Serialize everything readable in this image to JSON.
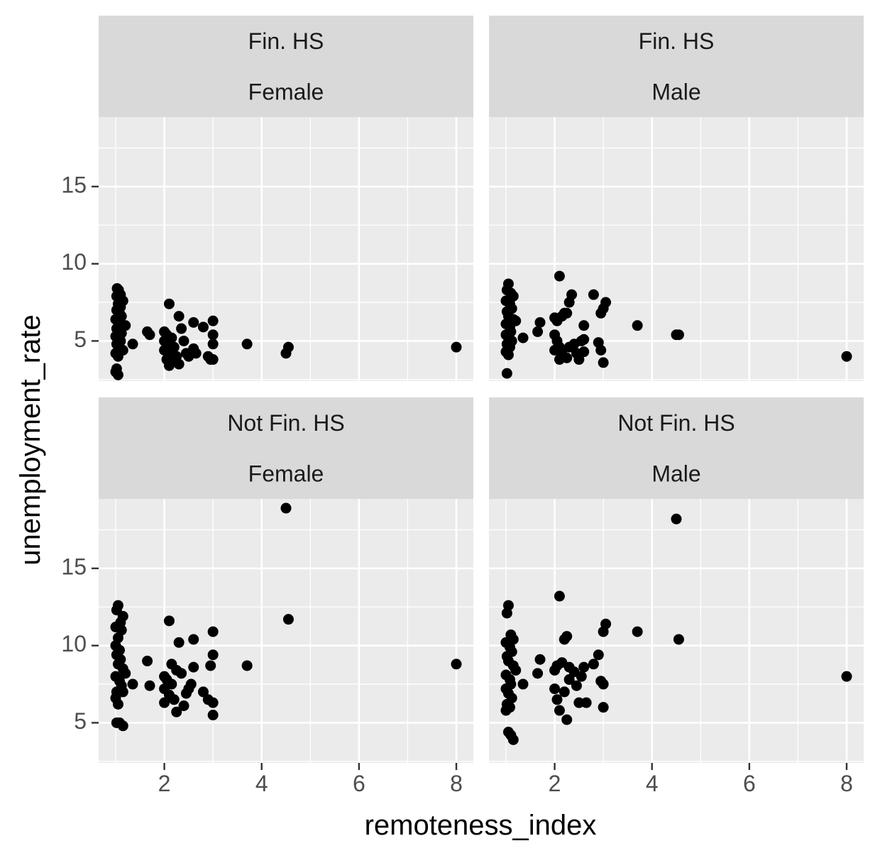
{
  "chart_data": {
    "type": "scatter",
    "facet_layout": "2x2 grid, rows = education, columns = sex",
    "xlabel": "remoteness_index",
    "ylabel": "unemployment_rate",
    "xlim": [
      0.65,
      8.35
    ],
    "x_ticks": [
      2,
      4,
      6,
      8
    ],
    "y_ticks": [
      5,
      10,
      15
    ],
    "grid": true,
    "legend": "none",
    "colors": {
      "panel_bg": "#ebebeb",
      "strip_bg": "#d9d9d9",
      "grid": "#ffffff",
      "point": "#000000"
    },
    "panels": [
      {
        "strip": [
          "Fin. HS",
          "Female"
        ],
        "ylim": [
          2.4,
          19.5
        ],
        "points": [
          [
            1.03,
            8.4
          ],
          [
            1.06,
            8.3
          ],
          [
            1.1,
            8.0
          ],
          [
            1.02,
            7.9
          ],
          [
            1.15,
            7.6
          ],
          [
            1.05,
            7.4
          ],
          [
            1.1,
            7.2
          ],
          [
            1.02,
            7.0
          ],
          [
            1.08,
            6.8
          ],
          [
            1.12,
            6.6
          ],
          [
            1.0,
            6.4
          ],
          [
            1.06,
            6.2
          ],
          [
            1.15,
            6.0
          ],
          [
            1.2,
            6.0
          ],
          [
            1.02,
            5.8
          ],
          [
            1.08,
            5.6
          ],
          [
            1.12,
            5.5
          ],
          [
            1.0,
            5.3
          ],
          [
            1.05,
            5.1
          ],
          [
            1.1,
            5.0
          ],
          [
            1.02,
            4.8
          ],
          [
            1.08,
            4.6
          ],
          [
            1.15,
            4.4
          ],
          [
            1.0,
            4.2
          ],
          [
            1.05,
            4.0
          ],
          [
            1.02,
            3.2
          ],
          [
            1.0,
            3.0
          ],
          [
            1.05,
            2.8
          ],
          [
            1.35,
            4.8
          ],
          [
            1.65,
            5.6
          ],
          [
            1.7,
            5.4
          ],
          [
            2.1,
            7.4
          ],
          [
            2.0,
            5.6
          ],
          [
            2.05,
            5.4
          ],
          [
            2.15,
            5.2
          ],
          [
            2.0,
            5.0
          ],
          [
            2.1,
            4.8
          ],
          [
            2.2,
            4.6
          ],
          [
            2.0,
            4.4
          ],
          [
            2.1,
            4.2
          ],
          [
            2.25,
            4.0
          ],
          [
            2.05,
            3.8
          ],
          [
            2.15,
            3.7
          ],
          [
            2.1,
            3.4
          ],
          [
            2.3,
            3.5
          ],
          [
            2.3,
            6.6
          ],
          [
            2.35,
            5.8
          ],
          [
            2.4,
            5.0
          ],
          [
            2.45,
            4.2
          ],
          [
            2.5,
            4.0
          ],
          [
            2.6,
            6.2
          ],
          [
            2.6,
            4.5
          ],
          [
            2.65,
            4.2
          ],
          [
            2.8,
            5.9
          ],
          [
            2.9,
            4.0
          ],
          [
            2.95,
            3.8
          ],
          [
            3.0,
            3.8
          ],
          [
            3.0,
            6.3
          ],
          [
            3.0,
            5.4
          ],
          [
            3.0,
            4.8
          ],
          [
            3.7,
            4.8
          ],
          [
            4.5,
            4.2
          ],
          [
            4.55,
            4.6
          ],
          [
            8.0,
            4.6
          ]
        ]
      },
      {
        "strip": [
          "Fin. HS",
          "Male"
        ],
        "ylim": [
          2.4,
          19.5
        ],
        "points": [
          [
            1.05,
            8.7
          ],
          [
            1.02,
            8.3
          ],
          [
            1.1,
            8.1
          ],
          [
            1.15,
            7.9
          ],
          [
            1.0,
            7.6
          ],
          [
            1.08,
            7.4
          ],
          [
            1.12,
            7.1
          ],
          [
            1.02,
            6.9
          ],
          [
            1.05,
            6.6
          ],
          [
            1.15,
            6.4
          ],
          [
            1.2,
            6.3
          ],
          [
            1.0,
            6.1
          ],
          [
            1.08,
            5.9
          ],
          [
            1.1,
            5.6
          ],
          [
            1.0,
            5.4
          ],
          [
            1.05,
            5.2
          ],
          [
            1.12,
            5.0
          ],
          [
            1.02,
            4.8
          ],
          [
            1.08,
            4.6
          ],
          [
            1.0,
            4.3
          ],
          [
            1.05,
            4.1
          ],
          [
            1.02,
            2.9
          ],
          [
            1.35,
            5.2
          ],
          [
            1.65,
            5.6
          ],
          [
            1.7,
            6.2
          ],
          [
            2.0,
            6.5
          ],
          [
            2.05,
            6.3
          ],
          [
            2.1,
            9.2
          ],
          [
            2.15,
            6.6
          ],
          [
            2.2,
            6.8
          ],
          [
            2.25,
            6.8
          ],
          [
            2.3,
            7.5
          ],
          [
            2.35,
            8.0
          ],
          [
            2.0,
            5.4
          ],
          [
            2.05,
            5.0
          ],
          [
            2.1,
            4.6
          ],
          [
            2.0,
            4.4
          ],
          [
            2.15,
            4.2
          ],
          [
            2.1,
            3.8
          ],
          [
            2.25,
            3.9
          ],
          [
            2.3,
            4.6
          ],
          [
            2.4,
            4.8
          ],
          [
            2.45,
            4.2
          ],
          [
            2.5,
            3.8
          ],
          [
            2.55,
            5.0
          ],
          [
            2.6,
            4.3
          ],
          [
            2.6,
            5.1
          ],
          [
            2.6,
            6.0
          ],
          [
            2.8,
            8.0
          ],
          [
            2.9,
            4.9
          ],
          [
            2.95,
            4.4
          ],
          [
            3.0,
            3.6
          ],
          [
            2.95,
            6.8
          ],
          [
            3.0,
            7.1
          ],
          [
            3.05,
            7.5
          ],
          [
            3.7,
            6.0
          ],
          [
            4.5,
            5.4
          ],
          [
            4.55,
            5.4
          ],
          [
            8.0,
            4.0
          ]
        ]
      },
      {
        "strip": [
          "Not Fin. HS",
          "Female"
        ],
        "ylim": [
          2.4,
          19.5
        ],
        "points": [
          [
            1.05,
            12.6
          ],
          [
            1.02,
            12.3
          ],
          [
            1.15,
            11.9
          ],
          [
            1.1,
            11.5
          ],
          [
            1.0,
            11.2
          ],
          [
            1.12,
            11.0
          ],
          [
            1.05,
            10.5
          ],
          [
            1.0,
            10.0
          ],
          [
            1.08,
            9.7
          ],
          [
            1.02,
            9.4
          ],
          [
            1.1,
            9.1
          ],
          [
            1.05,
            8.8
          ],
          [
            1.15,
            8.5
          ],
          [
            1.2,
            8.2
          ],
          [
            1.0,
            8.0
          ],
          [
            1.08,
            7.7
          ],
          [
            1.12,
            7.4
          ],
          [
            1.02,
            7.0
          ],
          [
            1.15,
            7.0
          ],
          [
            1.0,
            6.6
          ],
          [
            1.05,
            6.2
          ],
          [
            1.02,
            5.0
          ],
          [
            1.08,
            5.0
          ],
          [
            1.15,
            4.8
          ],
          [
            1.35,
            7.5
          ],
          [
            1.65,
            9.0
          ],
          [
            1.7,
            7.4
          ],
          [
            2.1,
            11.6
          ],
          [
            2.0,
            8.0
          ],
          [
            2.05,
            7.8
          ],
          [
            2.15,
            7.5
          ],
          [
            2.0,
            7.2
          ],
          [
            2.1,
            6.8
          ],
          [
            2.2,
            6.5
          ],
          [
            2.0,
            6.3
          ],
          [
            2.15,
            8.8
          ],
          [
            2.25,
            8.4
          ],
          [
            2.3,
            10.2
          ],
          [
            2.35,
            8.2
          ],
          [
            2.25,
            5.7
          ],
          [
            2.4,
            6.1
          ],
          [
            2.45,
            6.9
          ],
          [
            2.5,
            7.2
          ],
          [
            2.55,
            7.5
          ],
          [
            2.6,
            10.4
          ],
          [
            2.6,
            8.6
          ],
          [
            2.8,
            7.0
          ],
          [
            2.9,
            6.5
          ],
          [
            2.95,
            8.7
          ],
          [
            3.0,
            10.9
          ],
          [
            3.0,
            9.4
          ],
          [
            3.0,
            6.3
          ],
          [
            3.0,
            5.5
          ],
          [
            3.7,
            8.7
          ],
          [
            4.5,
            18.9
          ],
          [
            4.55,
            11.7
          ],
          [
            8.0,
            8.8
          ]
        ]
      },
      {
        "strip": [
          "Not Fin. HS",
          "Male"
        ],
        "ylim": [
          2.4,
          19.5
        ],
        "points": [
          [
            1.05,
            12.6
          ],
          [
            1.02,
            12.1
          ],
          [
            1.1,
            10.7
          ],
          [
            1.15,
            10.4
          ],
          [
            1.0,
            10.2
          ],
          [
            1.08,
            9.9
          ],
          [
            1.12,
            9.6
          ],
          [
            1.02,
            9.3
          ],
          [
            1.05,
            9.0
          ],
          [
            1.15,
            8.7
          ],
          [
            1.2,
            8.4
          ],
          [
            1.0,
            8.1
          ],
          [
            1.08,
            7.8
          ],
          [
            1.1,
            7.5
          ],
          [
            1.0,
            7.2
          ],
          [
            1.05,
            6.9
          ],
          [
            1.12,
            6.6
          ],
          [
            1.02,
            6.2
          ],
          [
            1.08,
            6.0
          ],
          [
            1.0,
            5.8
          ],
          [
            1.05,
            4.4
          ],
          [
            1.1,
            4.2
          ],
          [
            1.15,
            3.9
          ],
          [
            1.35,
            7.5
          ],
          [
            1.65,
            8.2
          ],
          [
            1.7,
            9.1
          ],
          [
            2.0,
            8.4
          ],
          [
            2.05,
            8.7
          ],
          [
            2.1,
            13.2
          ],
          [
            2.15,
            8.9
          ],
          [
            2.2,
            10.4
          ],
          [
            2.25,
            10.6
          ],
          [
            2.3,
            8.6
          ],
          [
            2.0,
            7.2
          ],
          [
            2.05,
            6.5
          ],
          [
            2.1,
            5.8
          ],
          [
            2.2,
            7.0
          ],
          [
            2.25,
            5.2
          ],
          [
            2.3,
            7.8
          ],
          [
            2.4,
            8.3
          ],
          [
            2.45,
            7.4
          ],
          [
            2.5,
            6.3
          ],
          [
            2.55,
            8.0
          ],
          [
            2.6,
            8.6
          ],
          [
            2.65,
            6.3
          ],
          [
            2.8,
            8.8
          ],
          [
            2.9,
            9.4
          ],
          [
            2.95,
            7.7
          ],
          [
            3.0,
            6.0
          ],
          [
            3.0,
            7.5
          ],
          [
            3.0,
            10.9
          ],
          [
            3.05,
            11.4
          ],
          [
            3.7,
            10.9
          ],
          [
            4.5,
            18.2
          ],
          [
            4.55,
            10.4
          ],
          [
            8.0,
            8.0
          ]
        ]
      }
    ]
  }
}
